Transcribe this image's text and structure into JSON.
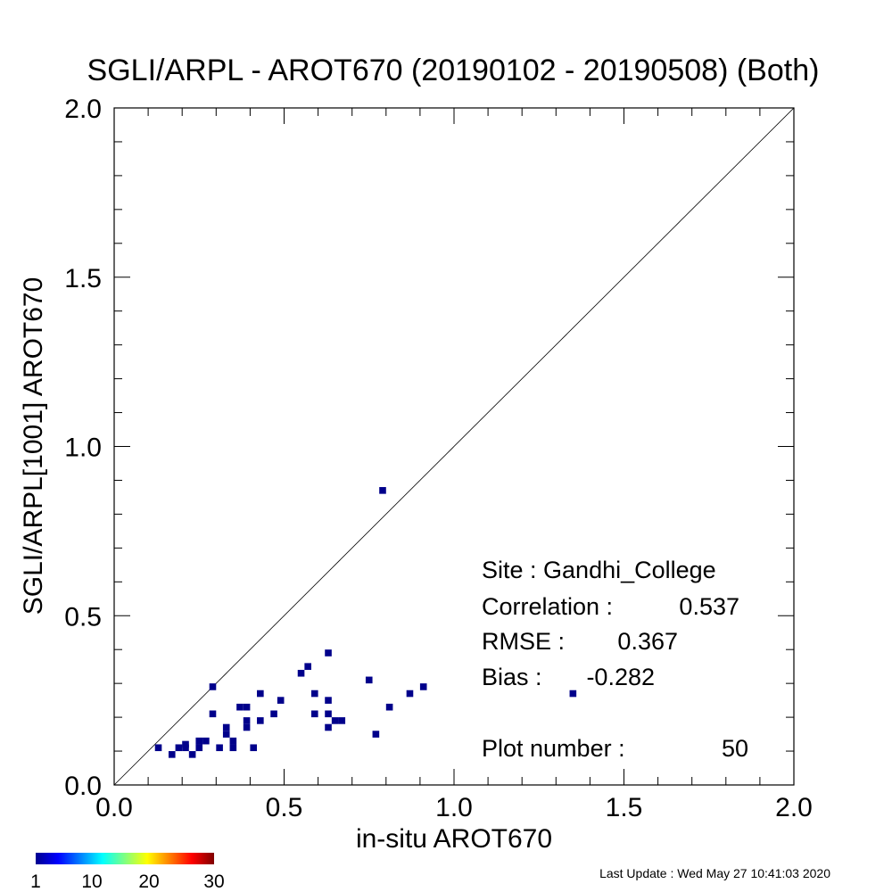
{
  "chart_data": {
    "type": "scatter",
    "title": "SGLI/ARPL - AROT670 (20190102 - 20190508) (Both)",
    "xlabel": "in-situ AROT670",
    "ylabel": "SGLI/ARPL[1001]    AROT670",
    "xlim": [
      0.0,
      2.0
    ],
    "ylim": [
      0.0,
      2.0
    ],
    "x_ticks": [
      "0.0",
      "0.5",
      "1.0",
      "1.5",
      "2.0"
    ],
    "y_ticks": [
      "0.0",
      "0.5",
      "1.0",
      "1.5",
      "2.0"
    ],
    "reference_line": "1:1",
    "grid": false,
    "marker_color": "#00008b",
    "points": [
      {
        "x": 0.13,
        "y": 0.11
      },
      {
        "x": 0.17,
        "y": 0.09
      },
      {
        "x": 0.19,
        "y": 0.11
      },
      {
        "x": 0.21,
        "y": 0.11
      },
      {
        "x": 0.21,
        "y": 0.12
      },
      {
        "x": 0.23,
        "y": 0.09
      },
      {
        "x": 0.25,
        "y": 0.11
      },
      {
        "x": 0.25,
        "y": 0.13
      },
      {
        "x": 0.27,
        "y": 0.13
      },
      {
        "x": 0.29,
        "y": 0.29
      },
      {
        "x": 0.29,
        "y": 0.21
      },
      {
        "x": 0.31,
        "y": 0.11
      },
      {
        "x": 0.33,
        "y": 0.15
      },
      {
        "x": 0.33,
        "y": 0.17
      },
      {
        "x": 0.35,
        "y": 0.11
      },
      {
        "x": 0.35,
        "y": 0.13
      },
      {
        "x": 0.37,
        "y": 0.23
      },
      {
        "x": 0.39,
        "y": 0.23
      },
      {
        "x": 0.39,
        "y": 0.19
      },
      {
        "x": 0.39,
        "y": 0.17
      },
      {
        "x": 0.41,
        "y": 0.11
      },
      {
        "x": 0.43,
        "y": 0.27
      },
      {
        "x": 0.43,
        "y": 0.19
      },
      {
        "x": 0.47,
        "y": 0.21
      },
      {
        "x": 0.49,
        "y": 0.25
      },
      {
        "x": 0.55,
        "y": 0.33
      },
      {
        "x": 0.57,
        "y": 0.35
      },
      {
        "x": 0.59,
        "y": 0.27
      },
      {
        "x": 0.59,
        "y": 0.21
      },
      {
        "x": 0.63,
        "y": 0.39
      },
      {
        "x": 0.63,
        "y": 0.25
      },
      {
        "x": 0.63,
        "y": 0.21
      },
      {
        "x": 0.63,
        "y": 0.17
      },
      {
        "x": 0.65,
        "y": 0.19
      },
      {
        "x": 0.67,
        "y": 0.19
      },
      {
        "x": 0.75,
        "y": 0.31
      },
      {
        "x": 0.77,
        "y": 0.15
      },
      {
        "x": 0.79,
        "y": 0.87
      },
      {
        "x": 0.81,
        "y": 0.23
      },
      {
        "x": 0.87,
        "y": 0.27
      },
      {
        "x": 0.91,
        "y": 0.29
      },
      {
        "x": 1.35,
        "y": 0.27
      }
    ],
    "stats": {
      "site": "Site : Gandhi_College",
      "correlation_label": "Correlation :",
      "correlation": "0.537",
      "rmse_label": "RMSE :",
      "rmse": "0.367",
      "bias_label": "Bias :",
      "bias": "-0.282",
      "plot_number_label": "Plot number :",
      "plot_number": "50"
    },
    "colorbar": {
      "labels": [
        "1",
        "10",
        "20",
        "30"
      ],
      "colors": [
        "#00008f",
        "#0000ff",
        "#0080ff",
        "#00ffff",
        "#80ff80",
        "#ffff00",
        "#ff8000",
        "#ff0000",
        "#800000"
      ]
    }
  },
  "footer": {
    "last_update": "Last Update : Wed May 27 10:41:03 2020"
  }
}
